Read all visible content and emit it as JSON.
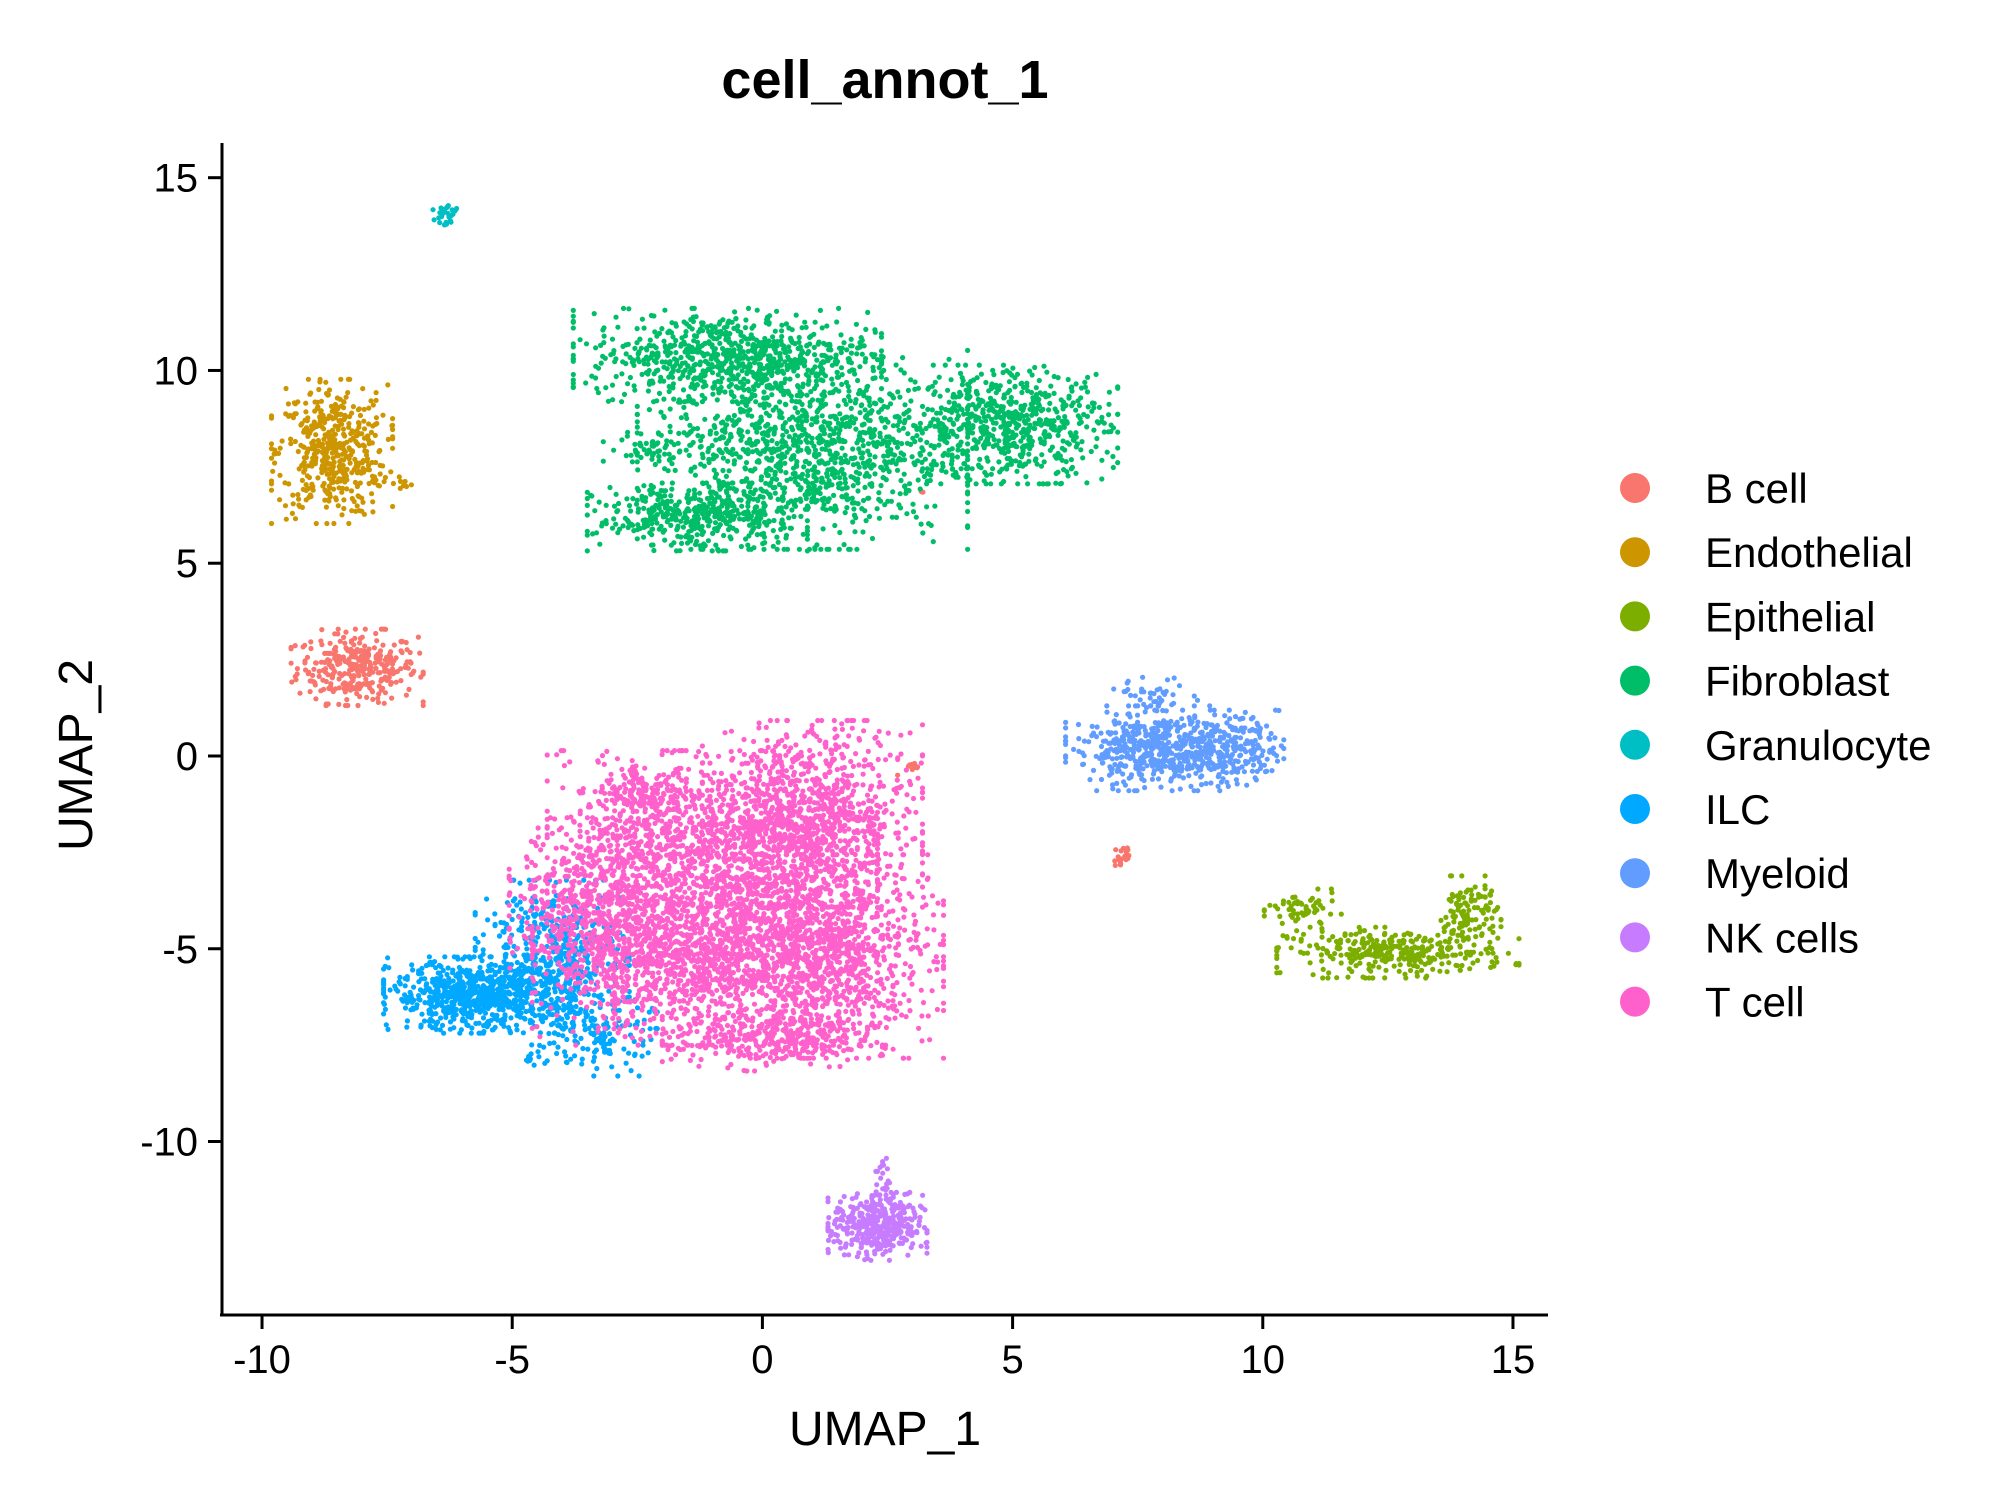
{
  "chart_data": {
    "type": "scatter",
    "title": "cell_annot_1",
    "xlabel": "UMAP_1",
    "ylabel": "UMAP_2",
    "xlim": [
      -10.8,
      15.7
    ],
    "ylim": [
      -14.5,
      15.9
    ],
    "x_ticks": [
      -10,
      -5,
      0,
      5,
      10,
      15
    ],
    "y_ticks": [
      -10,
      -5,
      0,
      5,
      10,
      15
    ],
    "x_tick_labels": [
      "-10",
      "-5",
      "0",
      "5",
      "10",
      "15"
    ],
    "y_tick_labels": [
      "-10",
      "-5",
      "0",
      "5",
      "10",
      "15"
    ],
    "grid": false,
    "legend_position": "right",
    "series": [
      {
        "name": "B cell",
        "color": "#F8766D",
        "clusters": [
          {
            "cx": -8.1,
            "cy": 2.3,
            "sx": 0.6,
            "sy": 0.45,
            "n": 320
          },
          {
            "cx": 3.0,
            "cy": -0.35,
            "sx": 0.15,
            "sy": 0.08,
            "n": 10
          },
          {
            "cx": 7.2,
            "cy": -2.6,
            "sx": 0.1,
            "sy": 0.2,
            "n": 20
          },
          {
            "cx": 3.2,
            "cy": 6.85,
            "sx": 0.05,
            "sy": 0.05,
            "n": 3
          }
        ]
      },
      {
        "name": "Endothelial",
        "color": "#CD9600",
        "clusters": [
          {
            "cx": -8.6,
            "cy": 7.9,
            "sx": 0.55,
            "sy": 0.85,
            "n": 460
          },
          {
            "cx": -7.4,
            "cy": 7.1,
            "sx": 0.2,
            "sy": 0.1,
            "n": 12
          }
        ]
      },
      {
        "name": "Epithelial",
        "color": "#7CAE00",
        "clusters": [
          {
            "cx": 12.7,
            "cy": -5.1,
            "sx": 1.1,
            "sy": 0.3,
            "n": 330
          },
          {
            "cx": 14.1,
            "cy": -4.1,
            "sx": 0.3,
            "sy": 0.45,
            "n": 110
          },
          {
            "cx": 10.8,
            "cy": -4.0,
            "sx": 0.35,
            "sy": 0.25,
            "n": 60
          }
        ]
      },
      {
        "name": "Fibroblast",
        "color": "#00BE67",
        "clusters": [
          {
            "cx": -0.7,
            "cy": 10.4,
            "sx": 1.4,
            "sy": 0.55,
            "n": 700
          },
          {
            "cx": 0.8,
            "cy": 8.0,
            "sx": 1.5,
            "sy": 1.2,
            "n": 1200
          },
          {
            "cx": -1.3,
            "cy": 6.2,
            "sx": 1.0,
            "sy": 0.4,
            "n": 400
          },
          {
            "cx": 4.9,
            "cy": 8.6,
            "sx": 1.0,
            "sy": 0.7,
            "n": 650
          },
          {
            "cx": -2.3,
            "cy": 8.0,
            "sx": 0.4,
            "sy": 0.2,
            "n": 40
          }
        ]
      },
      {
        "name": "Granulocyte",
        "color": "#00BFC4",
        "clusters": [
          {
            "cx": -6.3,
            "cy": 14.0,
            "sx": 0.15,
            "sy": 0.2,
            "n": 30
          }
        ]
      },
      {
        "name": "ILC",
        "color": "#00A9FF",
        "clusters": [
          {
            "cx": -5.7,
            "cy": -6.2,
            "sx": 0.85,
            "sy": 0.45,
            "n": 700
          },
          {
            "cx": -4.2,
            "cy": -5.2,
            "sx": 0.7,
            "sy": 0.9,
            "n": 500
          },
          {
            "cx": -3.2,
            "cy": -7.2,
            "sx": 0.5,
            "sy": 0.5,
            "n": 150
          },
          {
            "cx": -4.6,
            "cy": -7.8,
            "sx": 0.12,
            "sy": 0.15,
            "n": 15
          }
        ]
      },
      {
        "name": "Myeloid",
        "color": "#619CFF",
        "clusters": [
          {
            "cx": 7.6,
            "cy": 0.2,
            "sx": 0.7,
            "sy": 0.5,
            "n": 380
          },
          {
            "cx": 9.1,
            "cy": 0.2,
            "sx": 0.6,
            "sy": 0.45,
            "n": 320
          },
          {
            "cx": 7.9,
            "cy": 1.6,
            "sx": 0.4,
            "sy": 0.2,
            "n": 40
          }
        ]
      },
      {
        "name": "NK cells",
        "color": "#C77CFF",
        "clusters": [
          {
            "cx": 2.3,
            "cy": -12.2,
            "sx": 0.45,
            "sy": 0.4,
            "n": 420
          },
          {
            "cx": 2.4,
            "cy": -11.0,
            "sx": 0.08,
            "sy": 0.3,
            "n": 20
          }
        ]
      },
      {
        "name": "T cell",
        "color": "#FF61CC",
        "clusters": [
          {
            "cx": -1.0,
            "cy": -2.5,
            "sx": 1.5,
            "sy": 1.2,
            "n": 1300
          },
          {
            "cx": 1.0,
            "cy": -1.5,
            "sx": 1.0,
            "sy": 1.1,
            "n": 900
          },
          {
            "cx": -1.3,
            "cy": -5.3,
            "sx": 1.5,
            "sy": 1.0,
            "n": 1300
          },
          {
            "cx": 1.2,
            "cy": -5.2,
            "sx": 1.1,
            "sy": 1.2,
            "n": 1000
          },
          {
            "cx": -3.3,
            "cy": -3.8,
            "sx": 0.8,
            "sy": 1.0,
            "n": 500
          },
          {
            "cx": 0.2,
            "cy": -7.4,
            "sx": 1.0,
            "sy": 0.35,
            "n": 300
          },
          {
            "cx": -2.4,
            "cy": -1.0,
            "sx": 0.4,
            "sy": 0.4,
            "n": 150
          }
        ]
      }
    ]
  }
}
